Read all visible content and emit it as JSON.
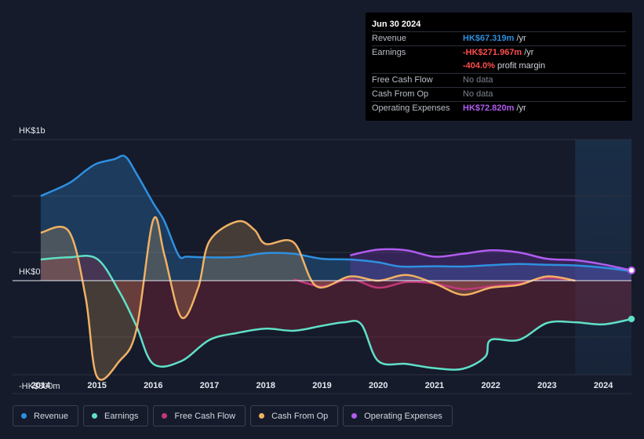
{
  "chart_data": {
    "type": "area",
    "currency": "HK$",
    "y_unit": "HK$m",
    "ylim": [
      -800,
      1000
    ],
    "y_tick_labels": [
      "HK$1b",
      "HK$0",
      "-HK$800m"
    ],
    "x_tick_labels": [
      "2014",
      "2015",
      "2016",
      "2017",
      "2018",
      "2019",
      "2020",
      "2021",
      "2022",
      "2023",
      "2024"
    ],
    "x_range": [
      2013.5,
      2024.5
    ],
    "forecast_start": 2023.5,
    "series": [
      {
        "name": "Revenue",
        "color": "#2e90e0",
        "points": [
          [
            2014.0,
            600
          ],
          [
            2014.5,
            690
          ],
          [
            2014.8,
            780
          ],
          [
            2015.0,
            830
          ],
          [
            2015.3,
            860
          ],
          [
            2015.5,
            880
          ],
          [
            2015.7,
            760
          ],
          [
            2016.0,
            550
          ],
          [
            2016.2,
            420
          ],
          [
            2016.45,
            180
          ],
          [
            2016.6,
            170
          ],
          [
            2017.0,
            165
          ],
          [
            2017.5,
            168
          ],
          [
            2018.0,
            195
          ],
          [
            2018.5,
            190
          ],
          [
            2019.0,
            155
          ],
          [
            2019.5,
            150
          ],
          [
            2020.0,
            130
          ],
          [
            2020.4,
            100
          ],
          [
            2021.0,
            102
          ],
          [
            2021.5,
            100
          ],
          [
            2022.0,
            110
          ],
          [
            2022.5,
            118
          ],
          [
            2023.0,
            112
          ],
          [
            2023.5,
            108
          ],
          [
            2024.0,
            92
          ],
          [
            2024.5,
            67.3
          ]
        ]
      },
      {
        "name": "Earnings",
        "color": "#5fe0c7",
        "points": [
          [
            2014.0,
            150
          ],
          [
            2014.5,
            165
          ],
          [
            2015.0,
            155
          ],
          [
            2015.4,
            -80
          ],
          [
            2015.7,
            -320
          ],
          [
            2016.0,
            -590
          ],
          [
            2016.5,
            -570
          ],
          [
            2017.0,
            -420
          ],
          [
            2017.5,
            -370
          ],
          [
            2018.0,
            -340
          ],
          [
            2018.5,
            -355
          ],
          [
            2019.0,
            -320
          ],
          [
            2019.4,
            -295
          ],
          [
            2019.7,
            -310
          ],
          [
            2020.0,
            -570
          ],
          [
            2020.5,
            -590
          ],
          [
            2021.0,
            -620
          ],
          [
            2021.5,
            -625
          ],
          [
            2021.9,
            -540
          ],
          [
            2022.0,
            -420
          ],
          [
            2022.5,
            -420
          ],
          [
            2023.0,
            -300
          ],
          [
            2023.5,
            -295
          ],
          [
            2024.0,
            -310
          ],
          [
            2024.5,
            -272
          ]
        ]
      },
      {
        "name": "Free Cash Flow",
        "color": "#c0397a",
        "points": [
          [
            2018.5,
            10
          ],
          [
            2019.0,
            -40
          ],
          [
            2019.5,
            10
          ],
          [
            2020.0,
            -50
          ],
          [
            2020.5,
            -10
          ],
          [
            2021.0,
            -20
          ],
          [
            2021.5,
            -60
          ],
          [
            2022.0,
            -40
          ],
          [
            2022.5,
            -20
          ],
          [
            2023.0,
            20
          ],
          [
            2023.5,
            0
          ]
        ]
      },
      {
        "name": "Cash From Op",
        "color": "#f0b164",
        "points": [
          [
            2014.0,
            340
          ],
          [
            2014.5,
            350
          ],
          [
            2014.8,
            -120
          ],
          [
            2015.0,
            -680
          ],
          [
            2015.4,
            -570
          ],
          [
            2015.7,
            -350
          ],
          [
            2016.0,
            430
          ],
          [
            2016.2,
            180
          ],
          [
            2016.5,
            -260
          ],
          [
            2016.8,
            -50
          ],
          [
            2017.0,
            280
          ],
          [
            2017.5,
            420
          ],
          [
            2017.8,
            360
          ],
          [
            2018.0,
            260
          ],
          [
            2018.5,
            270
          ],
          [
            2018.9,
            -40
          ],
          [
            2019.5,
            30
          ],
          [
            2020.0,
            0
          ],
          [
            2020.5,
            40
          ],
          [
            2021.0,
            -20
          ],
          [
            2021.5,
            -100
          ],
          [
            2022.0,
            -50
          ],
          [
            2022.5,
            -30
          ],
          [
            2023.0,
            30
          ],
          [
            2023.5,
            0
          ]
        ]
      },
      {
        "name": "Operating Expenses",
        "color": "#b15cf0",
        "points": [
          [
            2019.5,
            180
          ],
          [
            2020.0,
            220
          ],
          [
            2020.5,
            215
          ],
          [
            2021.0,
            170
          ],
          [
            2021.5,
            190
          ],
          [
            2022.0,
            215
          ],
          [
            2022.5,
            200
          ],
          [
            2023.0,
            155
          ],
          [
            2023.5,
            145
          ],
          [
            2024.0,
            115
          ],
          [
            2024.5,
            72.8
          ]
        ]
      }
    ]
  },
  "tooltip": {
    "date": "Jun 30 2024",
    "rows": [
      {
        "label": "Revenue",
        "value": "HK$67.319m",
        "unit": "/yr",
        "color": "#2e90e0"
      },
      {
        "label": "Earnings",
        "value": "-HK$271.967m",
        "unit": "/yr",
        "color": "#ff4d4d"
      },
      {
        "label": "",
        "value": "-404.0%",
        "unit": "profit margin",
        "color": "#ff4d4d"
      },
      {
        "label": "Free Cash Flow",
        "value": "No data",
        "unit": "",
        "color": "#7d8290"
      },
      {
        "label": "Cash From Op",
        "value": "No data",
        "unit": "",
        "color": "#7d8290"
      },
      {
        "label": "Operating Expenses",
        "value": "HK$72.820m",
        "unit": "/yr",
        "color": "#b15cf0"
      }
    ]
  },
  "legend": [
    {
      "label": "Revenue",
      "color": "#2e90e0"
    },
    {
      "label": "Earnings",
      "color": "#5fe0c7"
    },
    {
      "label": "Free Cash Flow",
      "color": "#c0397a"
    },
    {
      "label": "Cash From Op",
      "color": "#f0b164"
    },
    {
      "label": "Operating Expenses",
      "color": "#b15cf0"
    }
  ]
}
